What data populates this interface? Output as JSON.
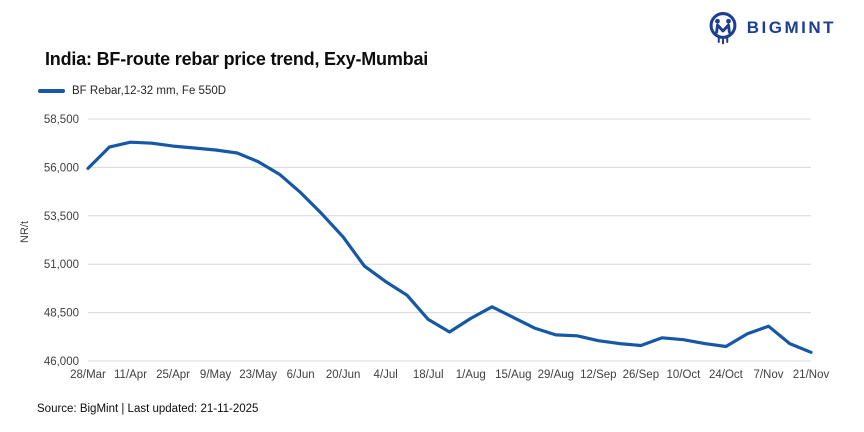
{
  "logo": {
    "text": "BIGMINT",
    "color": "#1e3f8f"
  },
  "title": "India: BF-route rebar price trend, Exy-Mumbai",
  "legend": {
    "label": "BF Rebar,12-32 mm, Fe 550D"
  },
  "footer": {
    "text": "Source: BigMint | Last updated: 21-11-2025"
  },
  "chart_data": {
    "type": "line",
    "title": "India: BF-route rebar price trend, Exy-Mumbai",
    "ylabel": "NR/t",
    "xlabel": "",
    "ylim": [
      46000,
      58500
    ],
    "y_ticks": [
      46000,
      48500,
      51000,
      53500,
      56000,
      58500
    ],
    "grid": "horizontal",
    "grid_color": "#d9d9d9",
    "legend_position": "top-left",
    "x_tick_labels": [
      "28/Mar",
      "11/Apr",
      "25/Apr",
      "9/May",
      "23/May",
      "6/Jun",
      "20/Jun",
      "4/Jul",
      "18/Jul",
      "1/Aug",
      "15/Aug",
      "29/Aug",
      "12/Sep",
      "26/Sep",
      "10/Oct",
      "24/Oct",
      "7/Nov",
      "21/Nov"
    ],
    "series": [
      {
        "name": "BF Rebar,12-32 mm, Fe 550D",
        "color": "#1657a6",
        "x": [
          "28/Mar",
          "4/Apr",
          "11/Apr",
          "18/Apr",
          "25/Apr",
          "2/May",
          "9/May",
          "16/May",
          "23/May",
          "30/May",
          "6/Jun",
          "13/Jun",
          "20/Jun",
          "27/Jun",
          "4/Jul",
          "11/Jul",
          "18/Jul",
          "25/Jul",
          "1/Aug",
          "8/Aug",
          "15/Aug",
          "22/Aug",
          "29/Aug",
          "5/Sep",
          "12/Sep",
          "19/Sep",
          "26/Sep",
          "3/Oct",
          "10/Oct",
          "17/Oct",
          "24/Oct",
          "31/Oct",
          "7/Nov",
          "14/Nov",
          "21/Nov"
        ],
        "values": [
          55950,
          57050,
          57300,
          57250,
          57100,
          57000,
          56900,
          56750,
          56300,
          55650,
          54700,
          53600,
          52400,
          50900,
          50100,
          49400,
          48150,
          47500,
          48200,
          48800,
          48250,
          47700,
          47350,
          47300,
          47050,
          46900,
          46800,
          47200,
          47100,
          46900,
          46750,
          47400,
          47800,
          46900,
          46450
        ]
      }
    ]
  }
}
